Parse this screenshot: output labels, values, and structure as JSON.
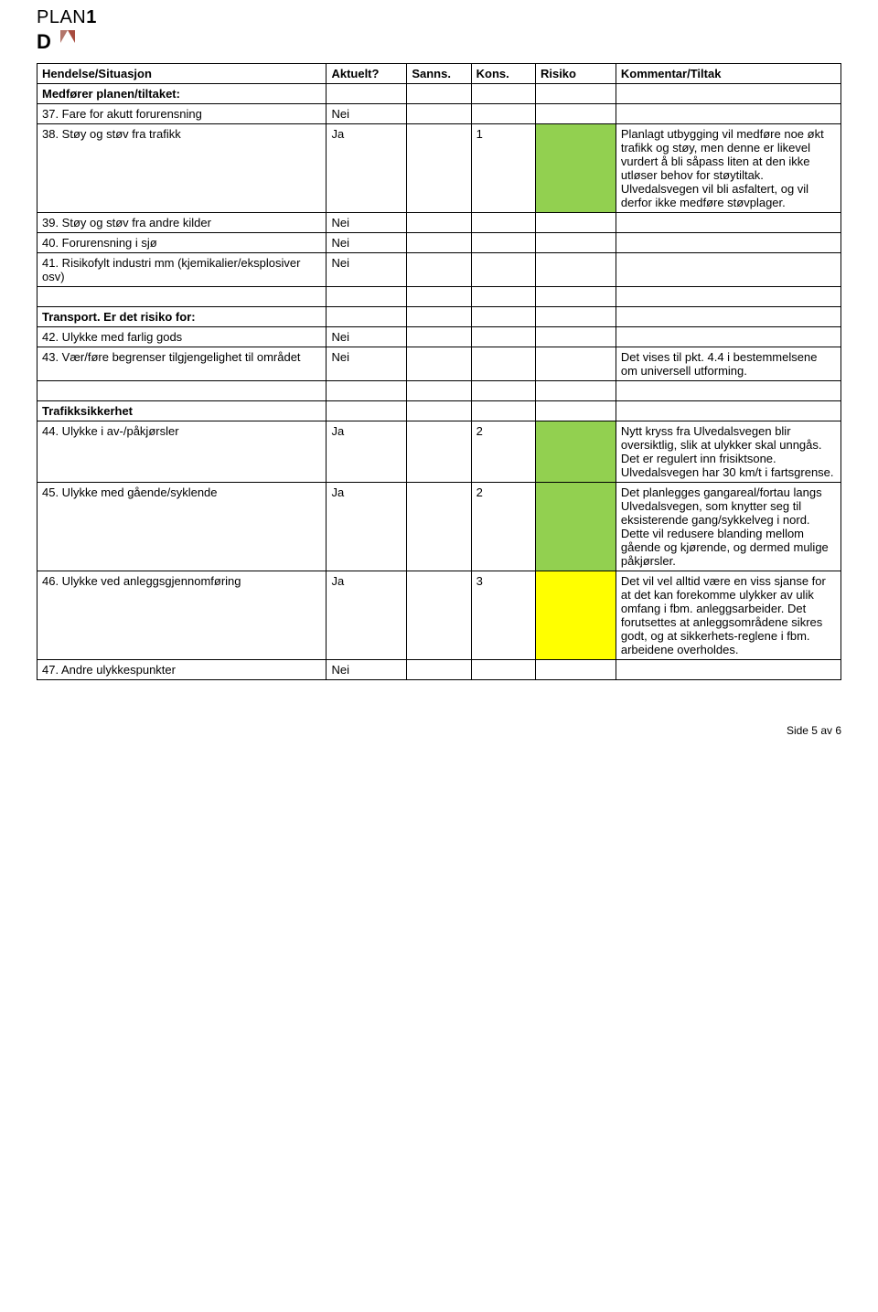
{
  "logo": {
    "part1": "PLAN",
    "part2": "1",
    "sub": "D"
  },
  "headers": {
    "hendelse": "Hendelse/Situasjon",
    "aktuelt": "Aktuelt?",
    "sanns": "Sanns.",
    "kons": "Kons.",
    "risiko": "Risiko",
    "kommentar": "Kommentar/Tiltak"
  },
  "sections": [
    {
      "title": "Medfører planen/tiltaket:",
      "rows": [
        {
          "num": "37.",
          "label": "Fare for akutt forurensning",
          "aktuelt": "Nei",
          "sanns": "",
          "kons": "",
          "risikoColor": "",
          "kommentar": ""
        },
        {
          "num": "38.",
          "label": "Støy og støv fra trafikk",
          "aktuelt": "Ja",
          "sanns": "",
          "kons": "1",
          "risikoColor": "green",
          "kommentar": "Planlagt utbygging vil medføre noe økt trafikk og støy, men denne er likevel vurdert å bli såpass liten at den ikke utløser behov for støytiltak. Ulvedalsvegen vil bli asfaltert, og vil derfor ikke medføre støvplager."
        },
        {
          "num": "39.",
          "label": "Støy og støv fra andre kilder",
          "aktuelt": "Nei",
          "sanns": "",
          "kons": "",
          "risikoColor": "",
          "kommentar": ""
        },
        {
          "num": "40.",
          "label": "Forurensning i sjø",
          "aktuelt": "Nei",
          "sanns": "",
          "kons": "",
          "risikoColor": "",
          "kommentar": ""
        },
        {
          "num": "41.",
          "label": "Risikofylt industri mm (kjemikalier/eksplosiver osv)",
          "aktuelt": "Nei",
          "sanns": "",
          "kons": "",
          "risikoColor": "",
          "kommentar": ""
        }
      ]
    },
    {
      "title": "Transport. Er det risiko for:",
      "spacerBefore": true,
      "rows": [
        {
          "num": "42.",
          "label": "Ulykke med farlig gods",
          "aktuelt": "Nei",
          "sanns": "",
          "kons": "",
          "risikoColor": "",
          "kommentar": ""
        },
        {
          "num": "43.",
          "label": "Vær/føre begrenser tilgjengelighet til området",
          "aktuelt": "Nei",
          "sanns": "",
          "kons": "",
          "risikoColor": "",
          "kommentar": "Det vises til pkt. 4.4 i bestemmelsene om universell utforming."
        }
      ]
    },
    {
      "title": "Trafikksikkerhet",
      "spacerBefore": true,
      "rows": [
        {
          "num": "44.",
          "label": "Ulykke i av-/påkjørsler",
          "aktuelt": "Ja",
          "sanns": "",
          "kons": "2",
          "risikoColor": "green",
          "kommentar": "Nytt kryss fra Ulvedalsvegen blir oversiktlig, slik at ulykker skal unngås. Det er regulert inn frisiktsone. Ulvedalsvegen har 30 km/t i fartsgrense."
        },
        {
          "num": "45.",
          "label": "Ulykke med gående/syklende",
          "aktuelt": "Ja",
          "sanns": "",
          "kons": "2",
          "risikoColor": "green",
          "kommentar": "Det planlegges gangareal/fortau langs Ulvedalsvegen, som knytter seg til eksisterende gang/sykkelveg i nord. Dette vil redusere blanding mellom gående og kjørende, og dermed mulige påkjørsler."
        },
        {
          "num": "46.",
          "label": "Ulykke ved anleggsgjennomføring",
          "aktuelt": "Ja",
          "sanns": "",
          "kons": "3",
          "risikoColor": "yellow",
          "kommentar": "Det vil vel alltid være en viss sjanse for at det kan forekomme ulykker av ulik omfang i fbm. anleggsarbeider. Det forutsettes at anleggsområdene sikres godt, og at sikkerhets-reglene i fbm. arbeidene overholdes."
        },
        {
          "num": "47.",
          "label": "Andre ulykkespunkter",
          "aktuelt": "Nei",
          "sanns": "",
          "kons": "",
          "risikoColor": "",
          "kommentar": ""
        }
      ]
    }
  ],
  "footer": {
    "text": "Side 5 av 6"
  }
}
